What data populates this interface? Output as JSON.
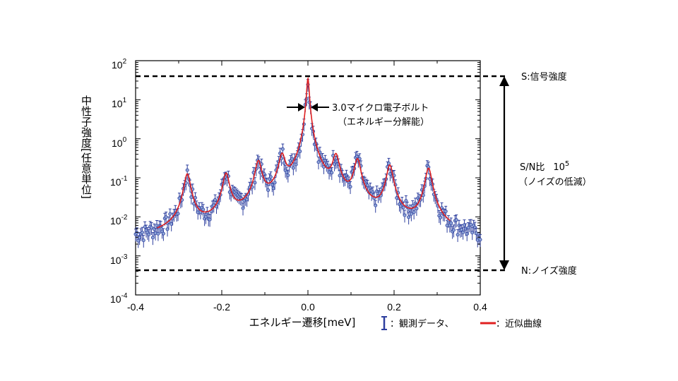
{
  "chart_data": {
    "type": "scatter",
    "xlabel": "エネルギー遷移[meV]",
    "ylabel": "中性子強度[任意単位]",
    "xlim": [
      -0.4,
      0.4
    ],
    "ylim": [
      0.0001,
      100
    ],
    "yscale": "log",
    "x_ticks": [
      "-0.4",
      "-0.2",
      "0.0",
      "0.2",
      "0.4"
    ],
    "y_ticks": [
      {
        "base": "10",
        "exp": "2",
        "value": 100
      },
      {
        "base": "10",
        "exp": "1",
        "value": 10
      },
      {
        "base": "10",
        "exp": "0",
        "value": 1
      },
      {
        "base": "10",
        "exp": "-1",
        "value": 0.1
      },
      {
        "base": "10",
        "exp": "-2",
        "value": 0.01
      },
      {
        "base": "10",
        "exp": "-3",
        "value": 0.001
      },
      {
        "base": "10",
        "exp": "-4",
        "value": 0.0001
      }
    ],
    "peaks": [
      {
        "x": -0.28,
        "height": 0.12
      },
      {
        "x": -0.19,
        "height": 0.12
      },
      {
        "x": -0.115,
        "height": 0.25
      },
      {
        "x": -0.06,
        "height": 0.35
      },
      {
        "x": 0.0,
        "height": 35
      },
      {
        "x": 0.065,
        "height": 0.35
      },
      {
        "x": 0.115,
        "height": 0.28
      },
      {
        "x": 0.19,
        "height": 0.2
      },
      {
        "x": 0.28,
        "height": 0.17
      }
    ],
    "background": 0.0009,
    "signal_level": 35,
    "noise_level": 0.00045,
    "series": [
      {
        "name": "観測データ",
        "color": "#2e3f9e",
        "style": "points with error bars"
      },
      {
        "name": "近似曲線",
        "color": "#e02020",
        "style": "line"
      }
    ]
  },
  "annotations": {
    "resolution_line1": "3.0マイクロ電子ボルト",
    "resolution_line2": "（エネルギー分解能）",
    "signal_label": "S:信号強度",
    "noise_label": "N:ノイズ強度",
    "sn_label": "S/N比",
    "sn_value_base": "10",
    "sn_value_exp": "5",
    "sn_sub": "（ノイズの低減）"
  },
  "legend": {
    "data_label": "：観測データ、",
    "fit_label": "：近似曲線"
  },
  "colors": {
    "data": "#2e3f9e",
    "fit": "#e02020",
    "text": "#000000"
  }
}
